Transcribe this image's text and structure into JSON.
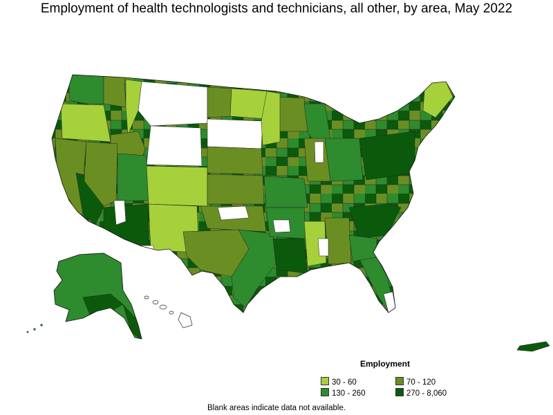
{
  "title": "Employment of health technologists and technicians, all other, by area, May 2022",
  "legend": {
    "title": "Employment",
    "items": [
      {
        "label": "30 - 60",
        "color": "#a6d13a"
      },
      {
        "label": "70 - 120",
        "color": "#6b8e23"
      },
      {
        "label": "130 - 260",
        "color": "#2e8b2e"
      },
      {
        "label": "270 - 8,060",
        "color": "#0b5a0b"
      }
    ]
  },
  "colors": {
    "no_data": "#ffffff",
    "border": "#222222"
  },
  "note": "Blank areas indicate data not available."
}
